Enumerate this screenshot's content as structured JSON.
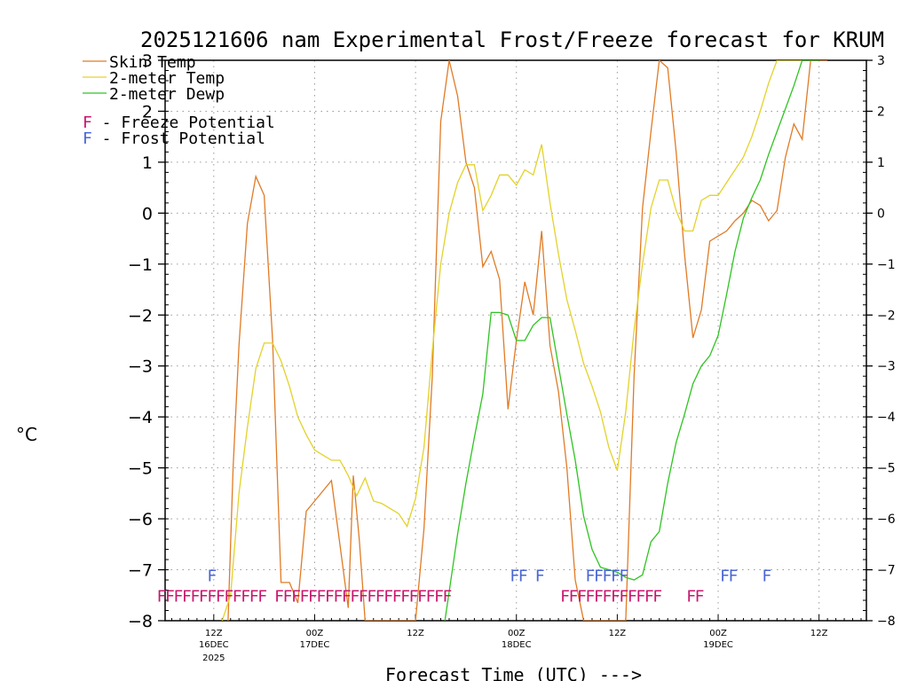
{
  "chart_data": {
    "type": "line",
    "title": "2025121606 nam Experimental Frost/Freeze forecast for KRUM",
    "xlabel": "Forecast Time (UTC) --->",
    "ylabel": "°C",
    "ylim": [
      -8,
      3
    ],
    "yticks": [
      -8,
      -7,
      -6,
      -5,
      -4,
      -3,
      -2,
      -1,
      0,
      1,
      2,
      3
    ],
    "ytick_labels": [
      "−8",
      "−7",
      "−6",
      "−5",
      "−4",
      "−3",
      "−2",
      "−1",
      "0",
      "1",
      "2",
      "3"
    ],
    "x_unit": "forecast hour",
    "xlim": [
      0,
      84
    ],
    "xticks": [
      {
        "hour": 6,
        "label": "12Z",
        "sub1": "16DEC",
        "sub2": "2025"
      },
      {
        "hour": 18,
        "label": "00Z",
        "sub1": "17DEC",
        "sub2": ""
      },
      {
        "hour": 30,
        "label": "12Z",
        "sub1": "",
        "sub2": ""
      },
      {
        "hour": 42,
        "label": "00Z",
        "sub1": "18DEC",
        "sub2": ""
      },
      {
        "hour": 54,
        "label": "12Z",
        "sub1": "",
        "sub2": ""
      },
      {
        "hour": 66,
        "label": "00Z",
        "sub1": "19DEC",
        "sub2": ""
      },
      {
        "hour": 78,
        "label": "12Z",
        "sub1": "",
        "sub2": ""
      }
    ],
    "grid": true,
    "legend_position": "top-left",
    "series": [
      {
        "name": "Skin Temp",
        "color": "#e07b26",
        "x": [
          7.7,
          8.3,
          9,
          10,
          11,
          12,
          13,
          14,
          15,
          16,
          17,
          18,
          19,
          20,
          21,
          22,
          22.6,
          23.3,
          24,
          24.7,
          25.3,
          26,
          27,
          28,
          29,
          30,
          31,
          32,
          33,
          34,
          35,
          36,
          37,
          38,
          39,
          40,
          41,
          42,
          43,
          44,
          45,
          46,
          47,
          48,
          49,
          50,
          51,
          52,
          53,
          54,
          55,
          56,
          57,
          58,
          59,
          60,
          61,
          62,
          63,
          64,
          65,
          66,
          67,
          68,
          69,
          70,
          71,
          72,
          73,
          74,
          75,
          76,
          77,
          78,
          79
        ],
        "values": [
          -8,
          -5,
          -2.6,
          -0.2,
          0.72,
          0.35,
          -2.5,
          -7.25,
          -7.25,
          -7.65,
          -5.85,
          -5.65,
          -5.45,
          -5.25,
          -6.5,
          -7.75,
          -5.15,
          -6.4,
          -8,
          -8,
          -8,
          -8,
          -8,
          -8,
          -8,
          -8,
          -6.2,
          -3.2,
          1.8,
          3,
          2.3,
          1,
          0.5,
          -1.05,
          -0.75,
          -1.3,
          -3.85,
          -2.5,
          -1.35,
          -2,
          -0.35,
          -2.6,
          -3.5,
          -5,
          -7.2,
          -8,
          -8,
          -8,
          -8,
          -8,
          -8,
          -3.2,
          0.1,
          1.6,
          3,
          2.85,
          1.2,
          -0.8,
          -2.45,
          -1.9,
          -0.55,
          -0.45,
          -0.35,
          -0.15,
          0,
          0.25,
          0.15,
          -0.15,
          0.05,
          1.1,
          1.75,
          1.45,
          3,
          3,
          3
        ]
      },
      {
        "name": "2-meter Temp",
        "color": "#e3d22a",
        "x": [
          7,
          8,
          9,
          10,
          11,
          12,
          13,
          14,
          15,
          16,
          17,
          18,
          19,
          20,
          21,
          22,
          23,
          24,
          25,
          26,
          27,
          28,
          29,
          30,
          31,
          32,
          33,
          34,
          35,
          36,
          37,
          38,
          39,
          40,
          41,
          42,
          43,
          44,
          45,
          46,
          47,
          48,
          49,
          50,
          51,
          52,
          53,
          54,
          55,
          56,
          57,
          58,
          59,
          60,
          61,
          62,
          63,
          64,
          65,
          66,
          67,
          68,
          69,
          70,
          71,
          72,
          73,
          74,
          75,
          76,
          77,
          78
        ],
        "values": [
          -8,
          -7.5,
          -5.5,
          -4.2,
          -3.05,
          -2.55,
          -2.55,
          -2.9,
          -3.4,
          -4,
          -4.35,
          -4.65,
          -4.75,
          -4.85,
          -4.85,
          -5.15,
          -5.55,
          -5.2,
          -5.65,
          -5.7,
          -5.8,
          -5.9,
          -6.15,
          -5.6,
          -4.6,
          -2.7,
          -1,
          0,
          0.6,
          0.95,
          0.95,
          0.05,
          0.35,
          0.75,
          0.75,
          0.55,
          0.85,
          0.75,
          1.35,
          0.2,
          -0.8,
          -1.7,
          -2.3,
          -2.95,
          -3.4,
          -3.9,
          -4.6,
          -5.05,
          -3.9,
          -2.3,
          -1,
          0.1,
          0.65,
          0.65,
          0.05,
          -0.35,
          -0.35,
          0.25,
          0.35,
          0.35,
          0.6,
          0.85,
          1.1,
          1.5,
          2,
          2.55,
          3,
          3,
          3,
          3,
          3,
          3
        ]
      },
      {
        "name": "2-meter Dewp",
        "color": "#2fc421",
        "x": [
          33.5,
          35,
          36,
          37,
          38,
          39,
          40,
          41,
          42,
          43,
          44,
          45,
          46,
          47,
          48,
          49,
          50,
          51,
          52,
          53,
          54,
          55,
          56,
          57,
          58,
          59,
          60,
          61,
          62,
          63,
          64,
          65,
          66,
          67,
          68,
          69,
          70,
          71,
          72,
          73,
          74,
          75,
          76,
          77,
          78
        ],
        "values": [
          -8,
          -6.3,
          -5.3,
          -4.4,
          -3.55,
          -1.95,
          -1.95,
          -2,
          -2.5,
          -2.5,
          -2.2,
          -2.05,
          -2.05,
          -3,
          -3.95,
          -4.85,
          -5.95,
          -6.6,
          -6.95,
          -7,
          -7.05,
          -7.15,
          -7.2,
          -7.1,
          -6.45,
          -6.25,
          -5.3,
          -4.5,
          -3.95,
          -3.35,
          -3,
          -2.8,
          -2.4,
          -1.6,
          -0.75,
          -0.1,
          0.3,
          0.65,
          1.15,
          1.6,
          2.05,
          2.5,
          3,
          3,
          3
        ]
      }
    ],
    "freeze_flags": {
      "label": "F - Freeze Potential",
      "color": "#c8176e",
      "y": -7.5,
      "hours": [
        0,
        1,
        2,
        3,
        4,
        5,
        6,
        7,
        8,
        9,
        10,
        11,
        12,
        14,
        15,
        16,
        17,
        18,
        19,
        20,
        21,
        22,
        23,
        24,
        25,
        26,
        27,
        28,
        29,
        30,
        31,
        32,
        33,
        34,
        48,
        49,
        50,
        51,
        52,
        53,
        54,
        55,
        56,
        57,
        58,
        59,
        63,
        64
      ]
    },
    "frost_flags": {
      "label": "F - Frost Potential",
      "color": "#4a66d6",
      "y": -7.1,
      "hours": [
        6,
        42,
        43,
        45,
        51,
        52,
        53,
        54,
        55,
        67,
        68,
        72
      ]
    }
  }
}
